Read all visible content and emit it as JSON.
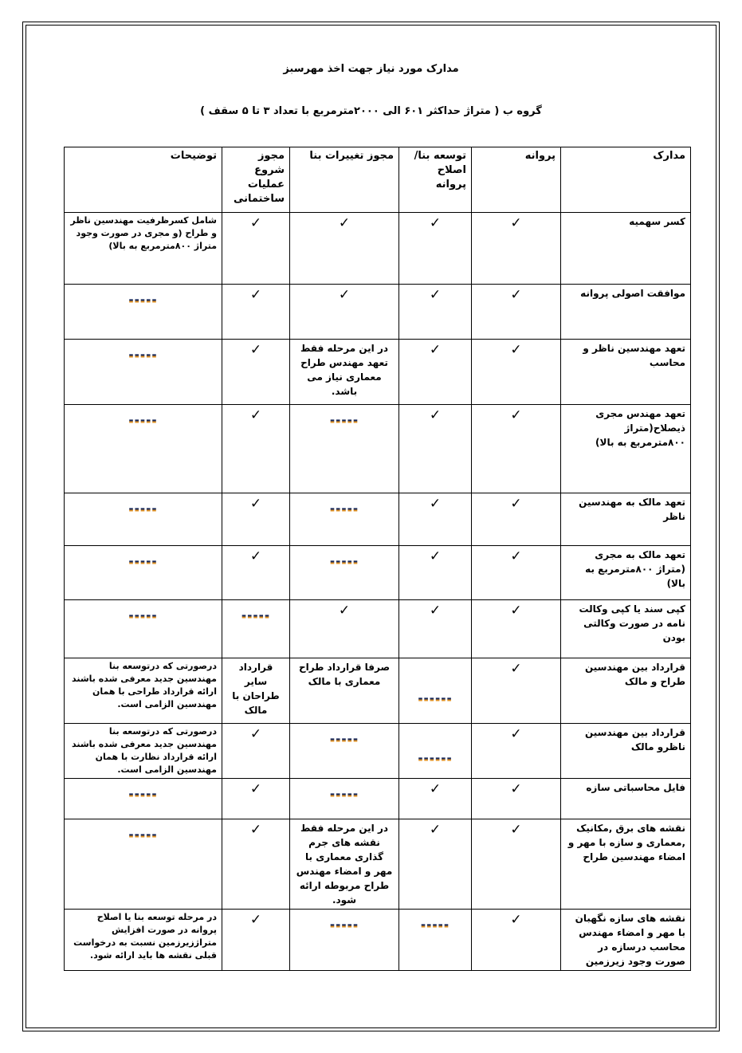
{
  "title": "مدارک مورد نیاز جهت اخذ مهرسبز",
  "subtitle": "گروه ب ( متراژ حداکثر ۶۰۱ الی ۲۰۰۰مترمربع با تعداد ۳ تا ۵ سقف )",
  "table": {
    "headers": [
      "مدارک",
      "پروانه",
      "توسعه بنا/اصلاح پروانه",
      "مجوز تغییرات بنا",
      "مجوز شروع عملیات ساختمانی",
      "توضیحات"
    ],
    "rows": [
      [
        "کسر سهمیه",
        "✓",
        "✓",
        "✓",
        "✓",
        "شامل کسرظرفیت مهندسین ناظر و طراح (و مجری در صورت وجود متراژ ۸۰۰مترمربع به بالا)"
      ],
      [
        "موافقت اصولی پروانه",
        "✓",
        "✓",
        "✓",
        "✓",
        "-----"
      ],
      [
        "تعهد مهندسین ناظر و محاسب",
        "✓",
        "✓",
        "در این مرحله فقط تعهد مهندس طراح معماری نیاز می باشد.",
        "✓",
        "-----"
      ],
      [
        "تعهد مهندس مجری ذیصلاح(متراژ ۸۰۰مترمربع به بالا)",
        "✓",
        "✓",
        "-----",
        "✓",
        "-----"
      ],
      [
        "تعهد مالک به مهندسین ناظر",
        "✓",
        "✓",
        "-----",
        "✓",
        "-----"
      ],
      [
        "تعهد مالک به مجری (متراژ ۸۰۰مترمربع به بالا)",
        "✓",
        "✓",
        "-----",
        "✓",
        "-----"
      ],
      [
        "کپی سند یا کپی وکالت نامه در صورت وکالتی بودن",
        "✓",
        "✓",
        "✓",
        "-----",
        "-----"
      ],
      [
        "قرارداد بین مهندسین طراح و مالک",
        "✓",
        "------",
        "صرفا قرارداد طراح معماری با مالک",
        "قرارداد سایر طراحان با مالک",
        "درصورتی که درتوسعه بنا مهندسین جدید معرفی شده باشند ارائه قرارداد طراحی با همان مهندسین الزامی است."
      ],
      [
        "قرارداد بین مهندسین ناظرو مالک",
        "✓",
        "------",
        "-----",
        "✓",
        "درصورتی که درتوسعه بنا مهندسین جدید معرفی شده باشند ارائه قرارداد نظارت با همان مهندسین الزامی است."
      ],
      [
        "فایل محاسباتی سازه",
        "✓",
        "✓",
        "-----",
        "✓",
        "-----"
      ],
      [
        "نقشه های برق ,مکانیک ,معماری و سازه با مهر و امضاء مهندسین طراح",
        "✓",
        "✓",
        "در این مرحله فقط نقشه های جرم گذاری معماری با مهر و امضاء مهندس طراح مربوطه ارائه شود.",
        "✓",
        "-----"
      ],
      [
        "نقشه های سازه نگهبان با مهر و امضاء مهندس محاسب درسازه در صورت وجود زیرزمین",
        "✓",
        "-----",
        "-----",
        "✓",
        "در مرحله توسعه بنا یا اصلاح پروانه در صورت افزایش متراژزیرزمین نسبت به درخواست قبلی نقشه ها باید ارائه شود."
      ]
    ]
  },
  "colors": {
    "dash": "#1a2a5a",
    "dash_shadow": "#e09020"
  }
}
